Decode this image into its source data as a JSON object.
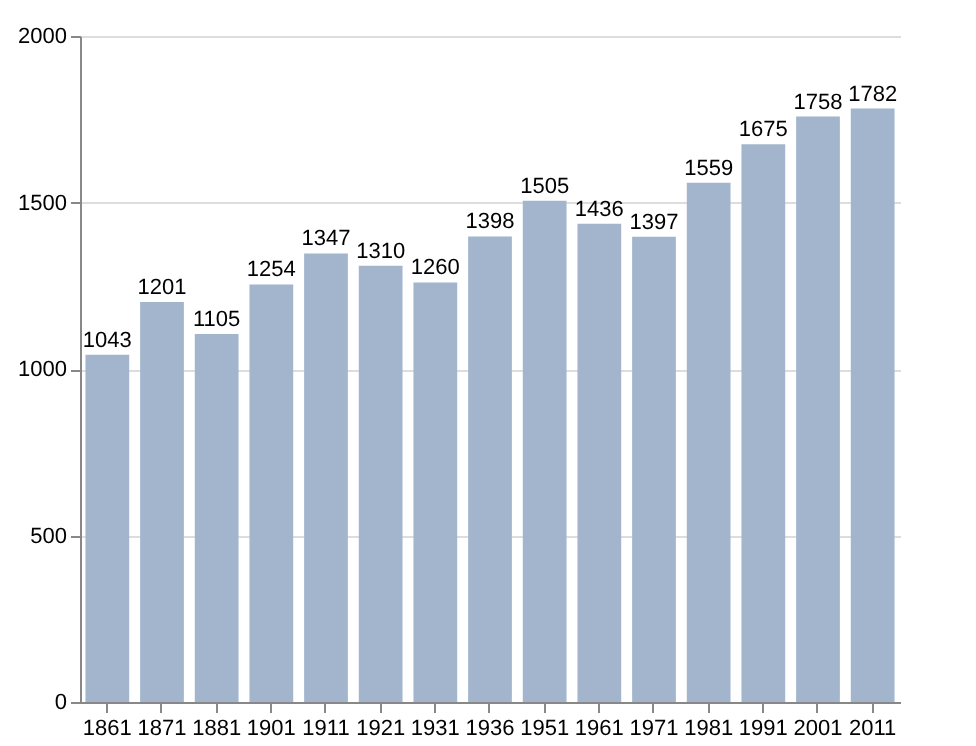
{
  "chart_data": {
    "type": "bar",
    "categories": [
      "1861",
      "1871",
      "1881",
      "1901",
      "1911",
      "1921",
      "1931",
      "1936",
      "1951",
      "1961",
      "1971",
      "1981",
      "1991",
      "2001",
      "2011"
    ],
    "values": [
      1043,
      1201,
      1105,
      1254,
      1347,
      1310,
      1260,
      1398,
      1505,
      1436,
      1397,
      1559,
      1675,
      1758,
      1782
    ],
    "color": "#a2b5cd",
    "ylim": [
      0,
      2000
    ],
    "yticks": [
      0,
      500,
      1000,
      1500,
      2000
    ],
    "grid": "y",
    "data_labels": true
  }
}
